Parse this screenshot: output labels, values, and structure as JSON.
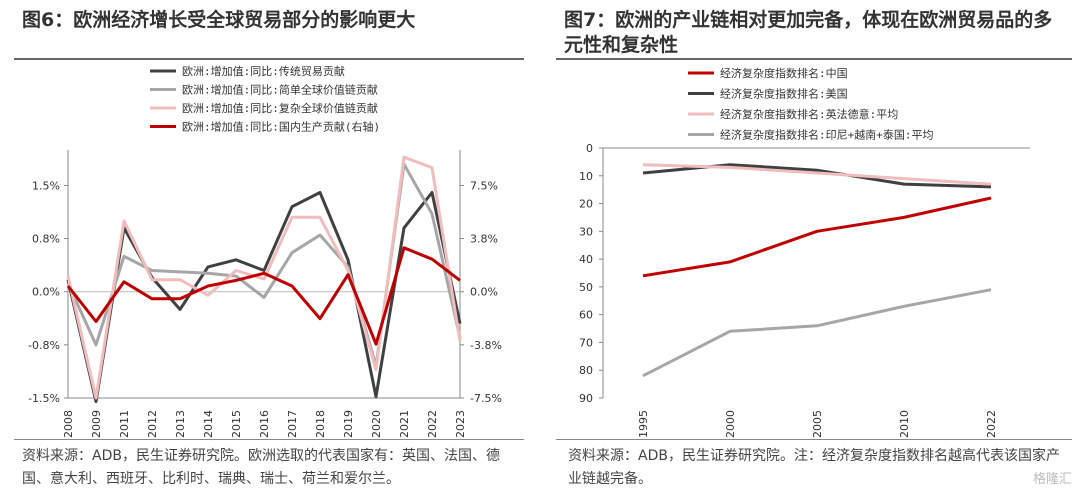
{
  "left": {
    "title": "图6：欧洲经济增长受全球贸易部分的影响更大",
    "source": "资料来源：ADB，民生证券研究院。欧洲选取的代表国家有：英国、法国、德国、意大利、西班牙、比利时、瑞典、瑞士、荷兰和爱尔兰。"
  },
  "right": {
    "title": "图7：欧洲的产业链相对更加完备，体现在欧洲贸易品的多元性和复杂性",
    "source": "资料来源：ADB，民生证券研究院。注：经济复杂度指数排名越高代表该国家产业链越完备。"
  },
  "watermark": "格隆汇",
  "chart_data": [
    {
      "type": "line",
      "categories": [
        "2008",
        "2009",
        "2011",
        "2012",
        "2013",
        "2014",
        "2015",
        "2016",
        "2017",
        "2018",
        "2019",
        "2020",
        "2021",
        "2022",
        "2023"
      ],
      "y_left_ticks": [
        "1.5%",
        "0.8%",
        "0.0%",
        "-0.8%",
        "-1.5%"
      ],
      "y_left_range": [
        -1.5,
        2.0
      ],
      "y_right_ticks": [
        "7.5%",
        "3.8%",
        "0.0%",
        "-3.8%",
        "-7.5%"
      ],
      "y_right_range": [
        -7.5,
        10.0
      ],
      "series": [
        {
          "name": "欧洲:增加值:同比:传统贸易贡献",
          "color": "#404040",
          "axis": "left",
          "values": [
            0.17,
            -1.55,
            0.9,
            0.2,
            -0.25,
            0.35,
            0.45,
            0.3,
            1.2,
            1.4,
            0.45,
            -1.48,
            0.9,
            1.4,
            -0.45
          ]
        },
        {
          "name": "欧洲:增加值:同比:简单全球价值链贡献",
          "color": "#a6a6a6",
          "axis": "left",
          "values": [
            0.12,
            -0.75,
            0.5,
            0.3,
            0.28,
            0.26,
            0.22,
            -0.08,
            0.55,
            0.8,
            0.35,
            -1.05,
            1.8,
            1.1,
            -0.65
          ]
        },
        {
          "name": "欧洲:增加值:同比:复杂全球价值链贡献",
          "color": "#f0bcbc",
          "axis": "left",
          "values": [
            0.22,
            -1.5,
            1.0,
            0.17,
            0.17,
            -0.05,
            0.3,
            0.18,
            1.05,
            1.05,
            0.3,
            -1.1,
            1.9,
            1.75,
            -0.7
          ]
        },
        {
          "name": "欧洲:增加值:同比:国内生产贡献(右轴)",
          "color": "#c00000",
          "axis": "right",
          "values": [
            0.4,
            -2.1,
            0.7,
            -0.5,
            -0.5,
            0.4,
            0.8,
            1.3,
            0.4,
            -1.9,
            1.2,
            -3.7,
            3.1,
            2.3,
            0.8
          ]
        }
      ]
    },
    {
      "type": "line",
      "x_ticks": [
        "1995",
        "2000",
        "2005",
        "2010",
        "2022"
      ],
      "y_ticks": [
        "0",
        "10",
        "20",
        "30",
        "40",
        "50",
        "60",
        "70",
        "80",
        "90"
      ],
      "y_range": [
        0,
        90
      ],
      "y_inverted": true,
      "series": [
        {
          "name": "经济复杂度指数排名:中国",
          "color": "#c00000",
          "values": [
            46,
            41,
            30,
            25,
            18
          ]
        },
        {
          "name": "经济复杂度指数排名:美国",
          "color": "#404040",
          "values": [
            9,
            6,
            8,
            13,
            14
          ]
        },
        {
          "name": "经济复杂度指数排名:英法德意:平均",
          "color": "#f0bcbc",
          "values": [
            6,
            7,
            9,
            11,
            13
          ]
        },
        {
          "name": "经济复杂度指数排名:印尼+越南+泰国:平均",
          "color": "#a6a6a6",
          "values": [
            82,
            66,
            64,
            57,
            51
          ]
        }
      ]
    }
  ]
}
